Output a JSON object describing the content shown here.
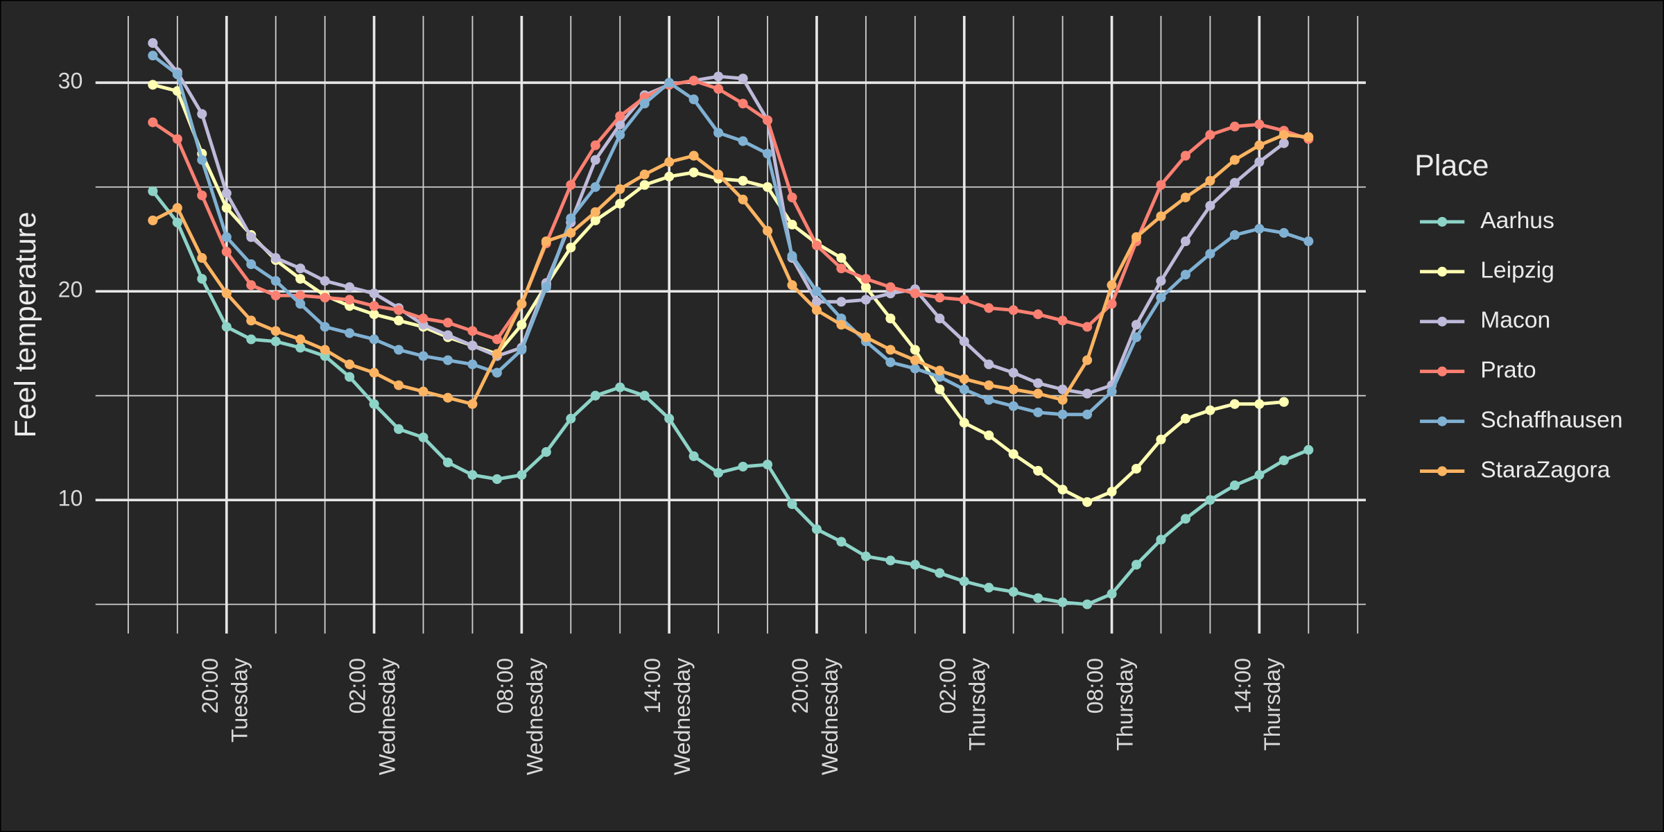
{
  "chart_data": {
    "type": "line",
    "y_label": "Feel temperature",
    "legend_title": "Place",
    "legend": "right",
    "grid": true,
    "categories": [
      null,
      null,
      null,
      [
        "20:00",
        "Tuesday"
      ],
      null,
      null,
      null,
      null,
      null,
      [
        "02:00",
        "Wednesday"
      ],
      null,
      null,
      null,
      null,
      null,
      [
        "08:00",
        "Wednesday"
      ],
      null,
      null,
      null,
      null,
      null,
      [
        "14:00",
        "Wednesday"
      ],
      null,
      null,
      null,
      null,
      null,
      [
        "20:00",
        "Wednesday"
      ],
      null,
      null,
      null,
      null,
      null,
      [
        "02:00",
        "Thursday"
      ],
      null,
      null,
      null,
      null,
      null,
      [
        "08:00",
        "Thursday"
      ],
      null,
      null,
      null,
      null,
      null,
      [
        "14:00",
        "Thursday"
      ],
      null,
      null
    ],
    "ylim": [
      3.6,
      33.2
    ],
    "yticks": [
      10,
      20,
      30
    ],
    "series": [
      {
        "name": "Aarhus",
        "color": "#8dd3c7",
        "values": [
          24.8,
          23.3,
          20.6,
          18.3,
          17.7,
          17.6,
          17.3,
          16.9,
          15.9,
          14.6,
          13.4,
          13.0,
          11.8,
          11.2,
          11.0,
          11.2,
          12.3,
          13.9,
          15.0,
          15.4,
          15.0,
          13.9,
          12.1,
          11.3,
          11.6,
          11.7,
          9.8,
          8.6,
          8.0,
          7.3,
          7.1,
          6.9,
          6.5,
          6.1,
          5.8,
          5.6,
          5.3,
          5.1,
          5.0,
          5.5,
          6.9,
          8.1,
          9.1,
          10.0,
          10.7,
          11.2,
          11.9,
          12.4
        ]
      },
      {
        "name": "Leipzig",
        "color": "#ffffb3",
        "values": [
          29.9,
          29.6,
          26.6,
          24.0,
          22.7,
          21.5,
          20.6,
          19.8,
          19.3,
          18.9,
          18.6,
          18.3,
          17.8,
          17.4,
          17.0,
          18.4,
          20.3,
          22.1,
          23.4,
          24.2,
          25.1,
          25.5,
          25.7,
          25.4,
          25.3,
          25.0,
          23.2,
          22.3,
          21.6,
          20.2,
          18.7,
          17.2,
          15.3,
          13.7,
          13.1,
          12.2,
          11.4,
          10.5,
          9.9,
          10.4,
          11.5,
          12.9,
          13.9,
          14.3,
          14.6,
          14.6,
          14.7,
          null
        ]
      },
      {
        "name": "Macon",
        "color": "#bebada",
        "values": [
          31.9,
          30.5,
          28.5,
          24.7,
          22.6,
          21.6,
          21.1,
          20.5,
          20.2,
          19.9,
          19.2,
          18.4,
          17.9,
          17.4,
          16.9,
          17.3,
          20.4,
          23.3,
          26.3,
          28.0,
          29.4,
          29.9,
          30.1,
          30.3,
          30.2,
          28.2,
          21.6,
          19.5,
          19.5,
          19.6,
          19.9,
          20.1,
          18.7,
          17.6,
          16.5,
          16.1,
          15.6,
          15.3,
          15.1,
          15.5,
          18.4,
          20.5,
          22.4,
          24.1,
          25.2,
          26.2,
          27.1,
          null
        ]
      },
      {
        "name": "Prato",
        "color": "#fb8072",
        "values": [
          28.1,
          27.3,
          24.6,
          21.9,
          20.3,
          19.8,
          19.8,
          19.7,
          19.6,
          19.3,
          19.1,
          18.7,
          18.5,
          18.1,
          17.7,
          19.4,
          22.3,
          25.1,
          27.0,
          28.4,
          29.3,
          29.9,
          30.1,
          29.7,
          29.0,
          28.2,
          24.5,
          22.2,
          21.1,
          20.6,
          20.2,
          19.9,
          19.7,
          19.6,
          19.2,
          19.1,
          18.9,
          18.6,
          18.3,
          19.4,
          22.4,
          25.1,
          26.5,
          27.5,
          27.9,
          28.0,
          27.7,
          27.3
        ]
      },
      {
        "name": "Schaffhausen",
        "color": "#80b1d3",
        "values": [
          31.3,
          30.4,
          26.3,
          22.6,
          21.3,
          20.5,
          19.4,
          18.3,
          18.0,
          17.7,
          17.2,
          16.9,
          16.7,
          16.5,
          16.1,
          17.2,
          20.2,
          23.5,
          25.0,
          27.5,
          29.0,
          30.0,
          29.2,
          27.6,
          27.2,
          26.6,
          21.7,
          20.0,
          18.7,
          17.6,
          16.6,
          16.3,
          15.9,
          15.3,
          14.8,
          14.5,
          14.2,
          14.1,
          14.1,
          15.2,
          17.8,
          19.7,
          20.8,
          21.8,
          22.7,
          23.0,
          22.8,
          22.4
        ]
      },
      {
        "name": "StaraZagora",
        "color": "#fdb462",
        "values": [
          23.4,
          24.0,
          21.6,
          19.9,
          18.6,
          18.1,
          17.7,
          17.2,
          16.5,
          16.1,
          15.5,
          15.2,
          14.9,
          14.6,
          17.0,
          19.4,
          22.4,
          22.8,
          23.8,
          24.9,
          25.6,
          26.2,
          26.5,
          25.6,
          24.4,
          22.9,
          20.3,
          19.1,
          18.4,
          17.8,
          17.2,
          16.7,
          16.2,
          15.8,
          15.5,
          15.3,
          15.1,
          14.8,
          16.7,
          20.3,
          22.6,
          23.6,
          24.5,
          25.3,
          26.3,
          27.0,
          27.5,
          27.4
        ]
      }
    ]
  }
}
